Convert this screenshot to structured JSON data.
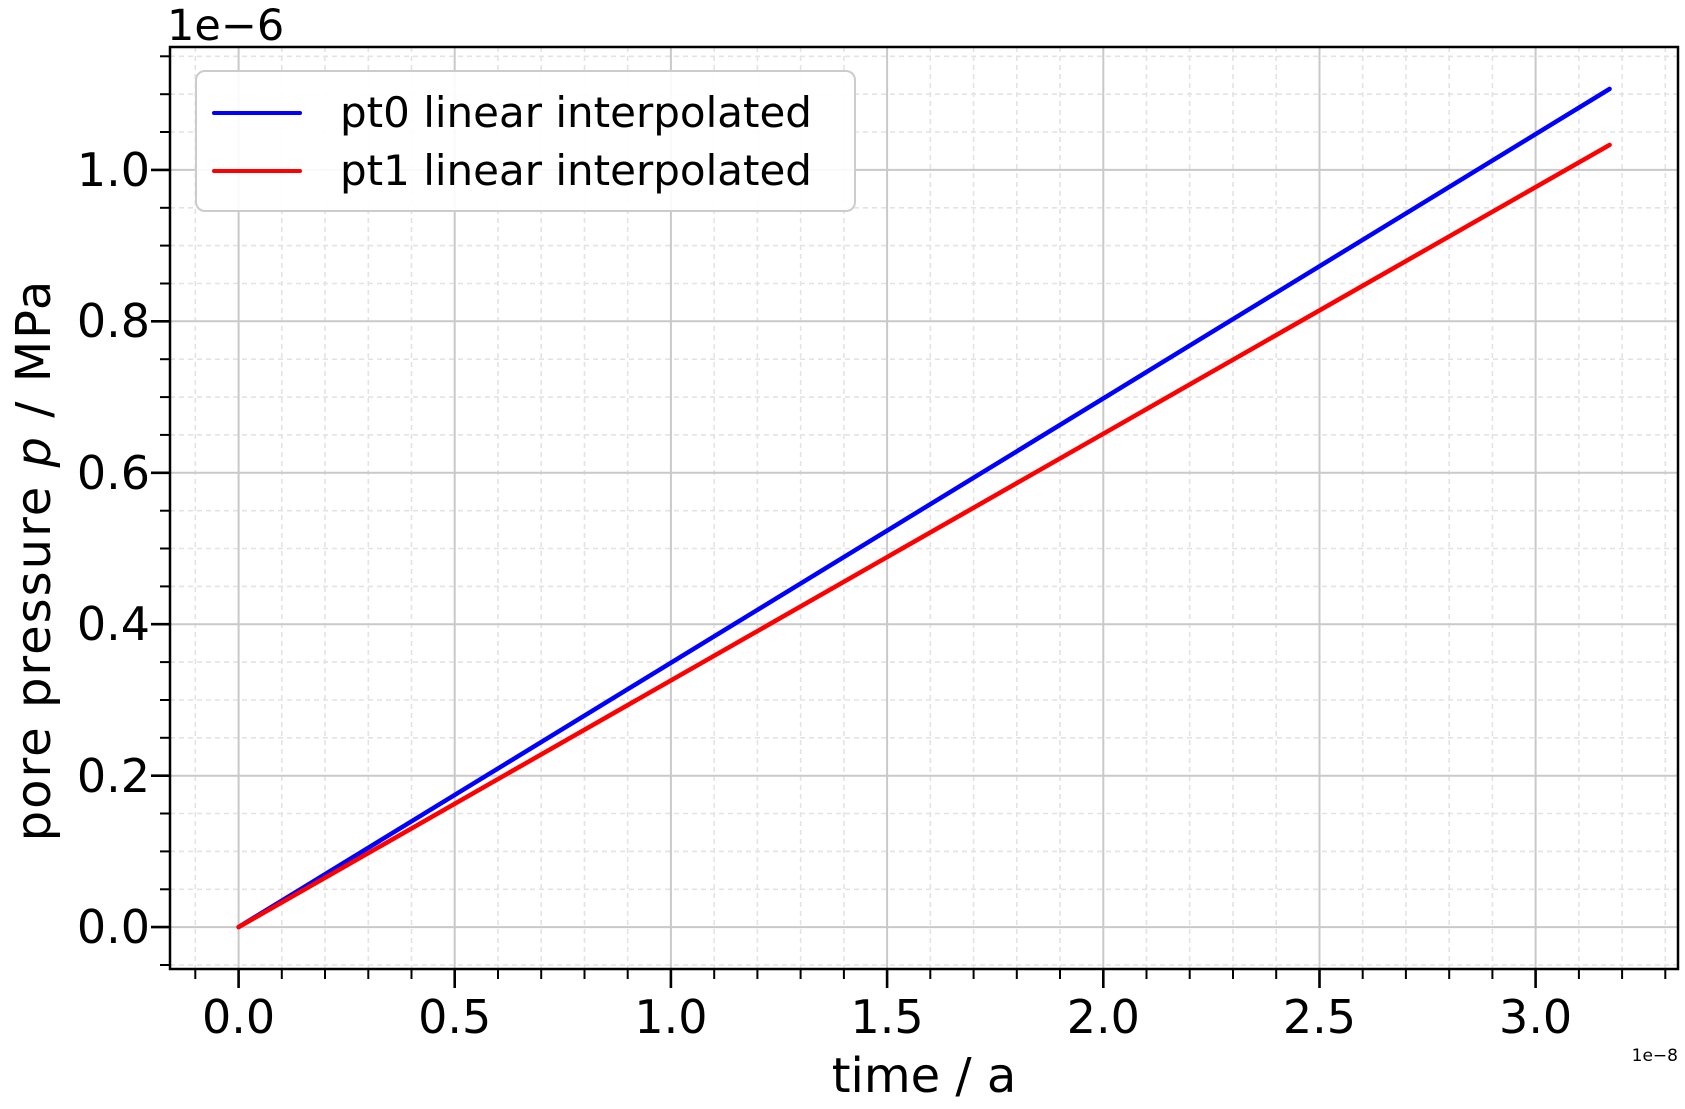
{
  "figure": {
    "y_offset_text": "1e−6",
    "x_offset_text": "1e−8",
    "xlabel": "time / a",
    "ylabel_prefix": "pore pressure ",
    "ylabel_var": "p",
    "ylabel_suffix": " / MPa"
  },
  "chart_data": {
    "type": "line",
    "title": "",
    "xlabel": "time / a",
    "ylabel": "pore pressure p / MPa",
    "x_unit": "a",
    "y_unit": "MPa",
    "x_scale_factor": "1e−8",
    "y_scale_factor": "1e−6",
    "xlim": [
      -0.1586,
      3.3293
    ],
    "ylim": [
      -0.0553,
      1.1623
    ],
    "xticks": [
      0.0,
      0.5,
      1.0,
      1.5,
      2.0,
      2.5,
      3.0
    ],
    "xtick_labels": [
      "0.0",
      "0.5",
      "1.0",
      "1.5",
      "2.0",
      "2.5",
      "3.0"
    ],
    "yticks": [
      0.0,
      0.2,
      0.4,
      0.6,
      0.8,
      1.0
    ],
    "ytick_labels": [
      "0.0",
      "0.2",
      "0.4",
      "0.6",
      "0.8",
      "1.0"
    ],
    "x_minor_step": 0.1,
    "y_minor_step": 0.05,
    "grid": {
      "major": true,
      "minor": true
    },
    "legend": {
      "position": "upper left"
    },
    "series": [
      {
        "name": "pt0 linear interpolated",
        "color": "#0000ff",
        "x": [
          0.0,
          3.171
        ],
        "y": [
          0.0,
          1.107
        ]
      },
      {
        "name": "pt1 linear interpolated",
        "color": "#ff0000",
        "x": [
          0.0,
          3.171
        ],
        "y": [
          0.0,
          1.033
        ]
      }
    ],
    "colors": {
      "spine": "#000000",
      "grid_major": "#c9c9c9",
      "grid_minor": "#e3e3e3",
      "tick": "#000000"
    }
  }
}
